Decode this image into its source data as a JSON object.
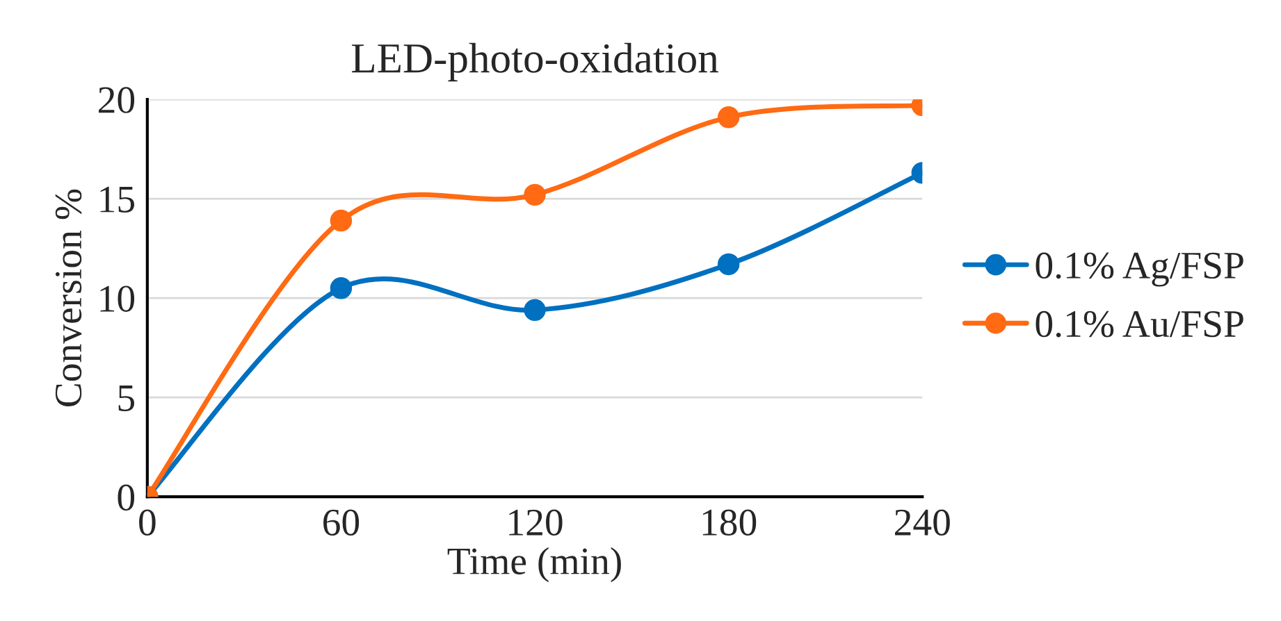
{
  "chart_data": {
    "type": "line",
    "title": "LED-photo-oxidation",
    "xlabel": "Time (min)",
    "ylabel": "Conversion %",
    "x": [
      0,
      60,
      120,
      180,
      240
    ],
    "series": [
      {
        "name": "0.1% Ag/FSP",
        "color": "#0070c0",
        "values": [
          0,
          10.5,
          9.4,
          11.7,
          16.3
        ]
      },
      {
        "name": "0.1% Au/FSP",
        "color": "#ff6a13",
        "values": [
          0,
          13.9,
          15.2,
          19.1,
          19.7
        ]
      }
    ],
    "xlim": [
      0,
      240
    ],
    "xticks": [
      0,
      60,
      120,
      180,
      240
    ],
    "ylim": [
      0,
      20
    ],
    "yticks": [
      0,
      5,
      10,
      15,
      20
    ],
    "grid": "y",
    "legend": "right",
    "marker": "circle",
    "line_style": "solid"
  }
}
